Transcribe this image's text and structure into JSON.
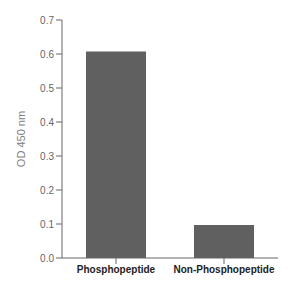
{
  "chart_data": {
    "type": "bar",
    "categories": [
      "Phosphopeptide",
      "Non-Phosphopeptide"
    ],
    "values": [
      0.607,
      0.097
    ],
    "color": "#606060",
    "ylabel": "OD 450 nm",
    "ylim": [
      0,
      0.7
    ],
    "yticks": [
      {
        "value": 0,
        "label": "0.0"
      },
      0.1,
      0.2,
      0.3,
      0.4,
      0.5,
      0.6,
      0.7
    ],
    "grid": false
  }
}
